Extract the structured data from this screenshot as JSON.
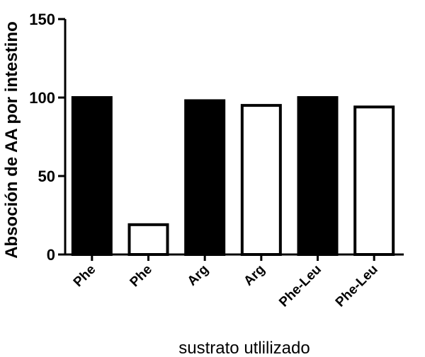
{
  "chart_data": {
    "type": "bar",
    "title": "",
    "xlabel": "sustrato utlilizado",
    "ylabel": "Absoción de AA por intestino",
    "ylim": [
      0,
      150
    ],
    "yticks": [
      0,
      50,
      100,
      150
    ],
    "grid": false,
    "categories": [
      "Phe",
      "Phe",
      "Arg",
      "Arg",
      "Phe-Leu",
      "Phe-Leu"
    ],
    "values": [
      100,
      19,
      98,
      95,
      100,
      94
    ],
    "bar_fill": [
      "filled",
      "open",
      "filled",
      "open",
      "filled",
      "open"
    ],
    "colors": {
      "filled": "#000000",
      "open": "#ffffff",
      "stroke": "#000000"
    }
  }
}
